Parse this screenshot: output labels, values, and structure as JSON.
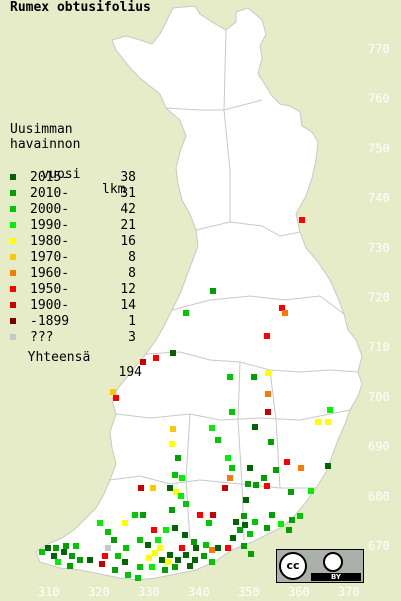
{
  "title": "Rumex obtusifolius",
  "legend_heading": [
    "Uusimman",
    "havainnon",
    "vuosi"
  ],
  "count_heading": "lkm",
  "legend": [
    {
      "label": "2015-",
      "count": "38",
      "color": "#006400"
    },
    {
      "label": "2010-",
      "count": "31",
      "color": "#00a000"
    },
    {
      "label": "2000-",
      "count": "42",
      "color": "#00c800"
    },
    {
      "label": "1990-",
      "count": "21",
      "color": "#00f000"
    },
    {
      "label": "1980-",
      "count": "16",
      "color": "#ffff00"
    },
    {
      "label": "1970-",
      "count": "8",
      "color": "#ffc800"
    },
    {
      "label": "1960-",
      "count": "8",
      "color": "#ff7800"
    },
    {
      "label": "1950-",
      "count": "12",
      "color": "#ff0000"
    },
    {
      "label": "1900-",
      "count": "14",
      "color": "#c80000"
    },
    {
      "label": "-1899",
      "count": "1",
      "color": "#780000"
    },
    {
      "label": "???",
      "count": "3",
      "color": "#c8c8c8"
    }
  ],
  "total_label": "Yhteensä",
  "total_count": "194",
  "grid_y_labels": [
    "770",
    "760",
    "750",
    "740",
    "730",
    "720",
    "710",
    "700",
    "690",
    "680",
    "670"
  ],
  "grid_x_labels": [
    "310",
    "320",
    "330",
    "340",
    "350",
    "360",
    "370"
  ],
  "license": {
    "badge": "CC BY",
    "text": "BY"
  },
  "colors": {
    "background": "#e6ecc7",
    "land": "#ffffff",
    "border": "#b4b4b4",
    "label": "#ffffff"
  }
}
